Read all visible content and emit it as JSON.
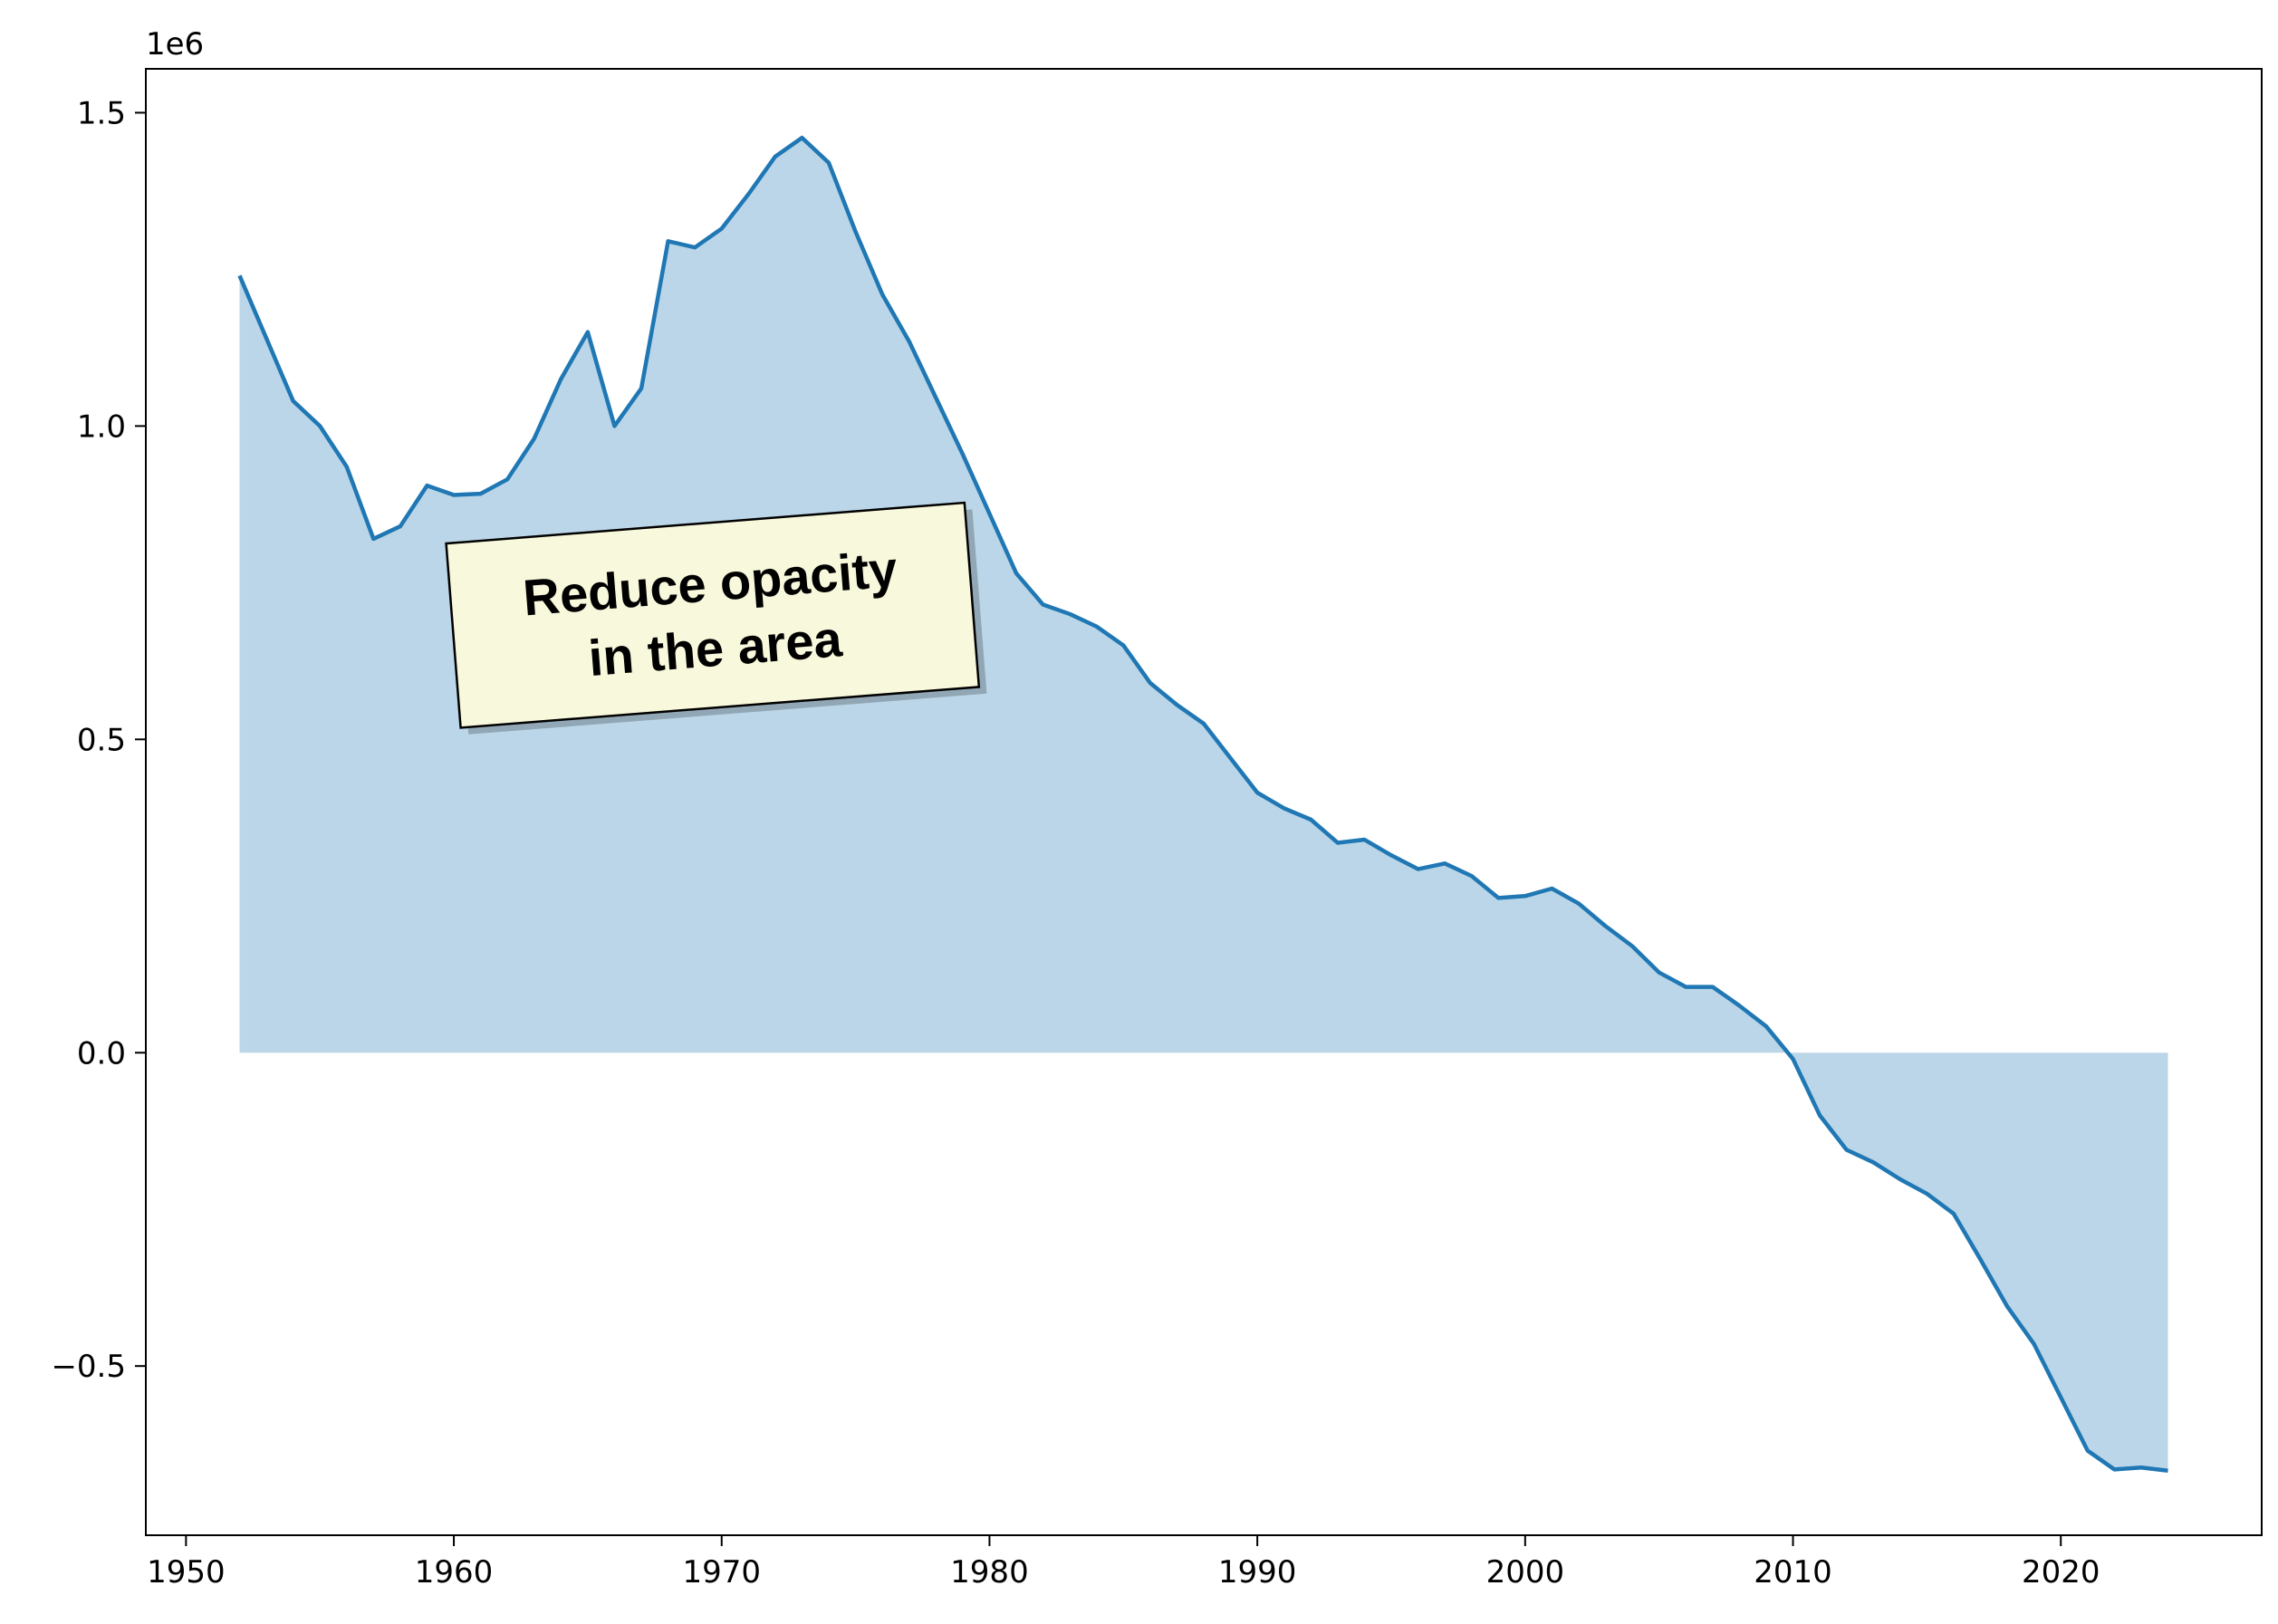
{
  "chart_data": {
    "type": "area",
    "title": "",
    "xlabel": "",
    "ylabel": "",
    "y_offset_label": "1e6",
    "xlim": [
      1948.5,
      2027.5
    ],
    "ylim": [
      -770000,
      1570000
    ],
    "grid": false,
    "x_ticks": [
      1950,
      1960,
      1970,
      1980,
      1990,
      2000,
      2010,
      2020
    ],
    "y_ticks": [
      {
        "value": -500000,
        "label": "−0.5"
      },
      {
        "value": 0,
        "label": "0.0"
      },
      {
        "value": 500000,
        "label": "0.5"
      },
      {
        "value": 1000000,
        "label": "1.0"
      },
      {
        "value": 1500000,
        "label": "1.5"
      }
    ],
    "line_color": "#1f77b4",
    "fill_color": "#1f77b4",
    "fill_opacity": 0.3,
    "annotation": {
      "lines": [
        "Reduce opacity",
        "in the area"
      ],
      "background": "#f8f8dc",
      "border": "#000000"
    },
    "series": [
      {
        "x": [
          1952,
          1953,
          1954,
          1955,
          1956,
          1957,
          1958,
          1959,
          1960,
          1961,
          1962,
          1963,
          1964,
          1965,
          1966,
          1967,
          1968,
          1969,
          1970,
          1971,
          1972,
          1973,
          1974,
          1975,
          1976,
          1977,
          1978,
          1979,
          1980,
          1981,
          1982,
          1983,
          1984,
          1985,
          1986,
          1987,
          1988,
          1989,
          1990,
          1991,
          1992,
          1993,
          1994,
          1995,
          1996,
          1997,
          1998,
          1999,
          2000,
          2001,
          2002,
          2003,
          2004,
          2005,
          2006,
          2007,
          2008,
          2009,
          2010,
          2011,
          2012,
          2013,
          2014,
          2015,
          2016,
          2017,
          2018,
          2019,
          2020,
          2021,
          2022,
          2023,
          2024
        ],
        "y": [
          1240000,
          1140000,
          1040000,
          1000000,
          935000,
          820000,
          840000,
          905000,
          890000,
          892000,
          915000,
          980000,
          1075000,
          1150000,
          1000000,
          1060000,
          1295000,
          1285000,
          1315000,
          1370000,
          1430000,
          1460000,
          1420000,
          1310000,
          1210000,
          1135000,
          1045000,
          955000,
          860000,
          765000,
          715000,
          700000,
          680000,
          650000,
          590000,
          555000,
          525000,
          470000,
          415000,
          390000,
          372000,
          335000,
          340000,
          315000,
          293000,
          302000,
          282000,
          247000,
          250000,
          262000,
          238000,
          202000,
          170000,
          128000,
          105000,
          105000,
          75000,
          42000,
          -10000,
          -100000,
          -155000,
          -175000,
          -202000,
          -225000,
          -257000,
          -330000,
          -405000,
          -465000,
          -550000,
          -635000,
          -665000,
          -662000,
          -667000
        ]
      }
    ]
  }
}
